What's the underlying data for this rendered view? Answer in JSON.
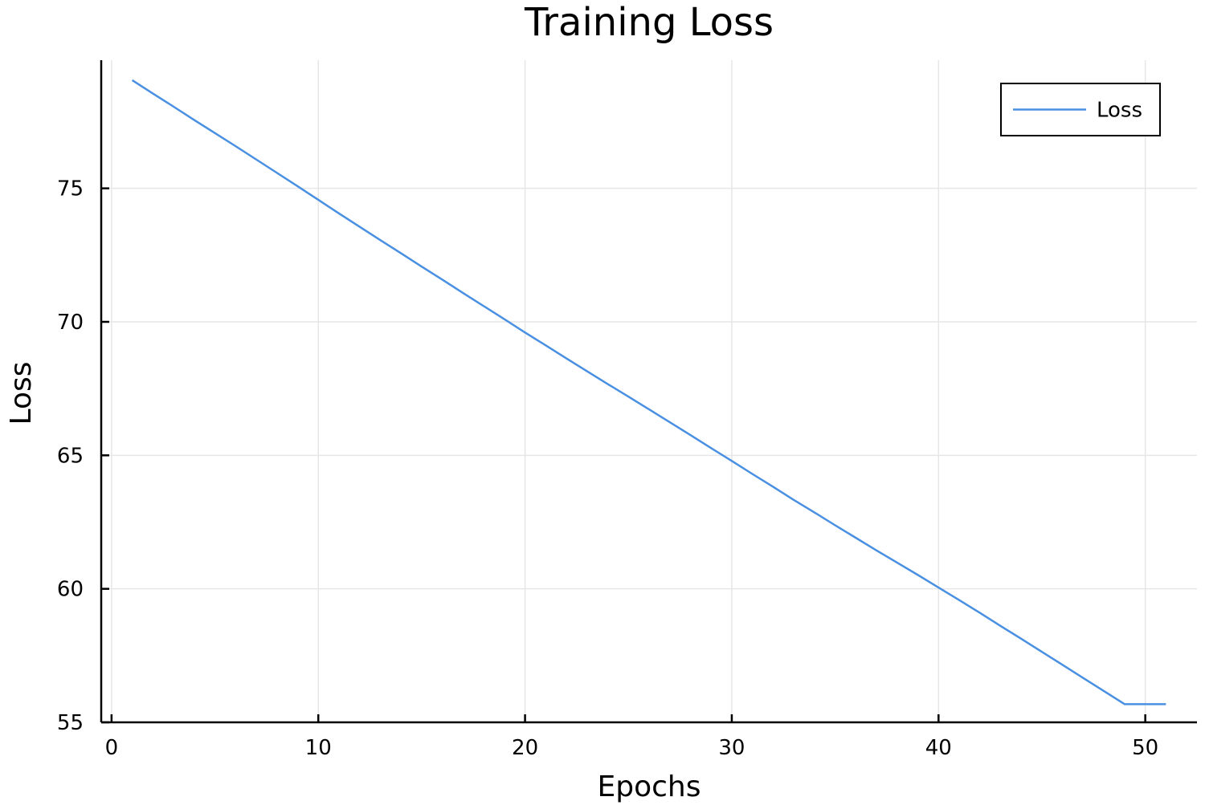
{
  "chart_data": {
    "type": "line",
    "title": "Training Loss",
    "xlabel": "Epochs",
    "ylabel": "Loss",
    "xlim": [
      -0.5,
      52.5
    ],
    "ylim": [
      55.0,
      79.8
    ],
    "xticks": [
      0,
      10,
      20,
      30,
      40,
      50
    ],
    "yticks": [
      55,
      60,
      65,
      70,
      75
    ],
    "xtick_labels": [
      "0",
      "10",
      "20",
      "30",
      "40",
      "50"
    ],
    "ytick_labels": [
      "55",
      "60",
      "65",
      "70",
      "75"
    ],
    "grid": true,
    "legend_position": "top-right",
    "series": [
      {
        "name": "Loss",
        "color": "#4a90e2",
        "x": [
          1,
          2,
          3,
          4,
          5,
          6,
          7,
          8,
          9,
          10,
          11,
          12,
          13,
          14,
          15,
          16,
          17,
          18,
          19,
          20,
          21,
          22,
          23,
          24,
          25,
          26,
          27,
          28,
          29,
          30,
          31,
          32,
          33,
          34,
          35,
          36,
          37,
          38,
          39,
          40,
          41,
          42,
          43,
          44,
          45,
          46,
          47,
          48,
          49,
          50,
          51
        ],
        "y": [
          79.05,
          78.55,
          78.06,
          77.56,
          77.07,
          76.58,
          76.08,
          75.58,
          75.08,
          74.57,
          74.06,
          73.56,
          73.06,
          72.57,
          72.07,
          71.58,
          71.08,
          70.59,
          70.1,
          69.6,
          69.12,
          68.63,
          68.15,
          67.67,
          67.2,
          66.72,
          66.24,
          65.76,
          65.27,
          64.79,
          64.3,
          63.82,
          63.33,
          62.86,
          62.38,
          61.91,
          61.44,
          60.98,
          60.52,
          60.05,
          59.58,
          59.1,
          58.61,
          58.13,
          57.64,
          57.15,
          56.66,
          56.17,
          55.68,
          55.68,
          55.68
        ]
      }
    ]
  }
}
